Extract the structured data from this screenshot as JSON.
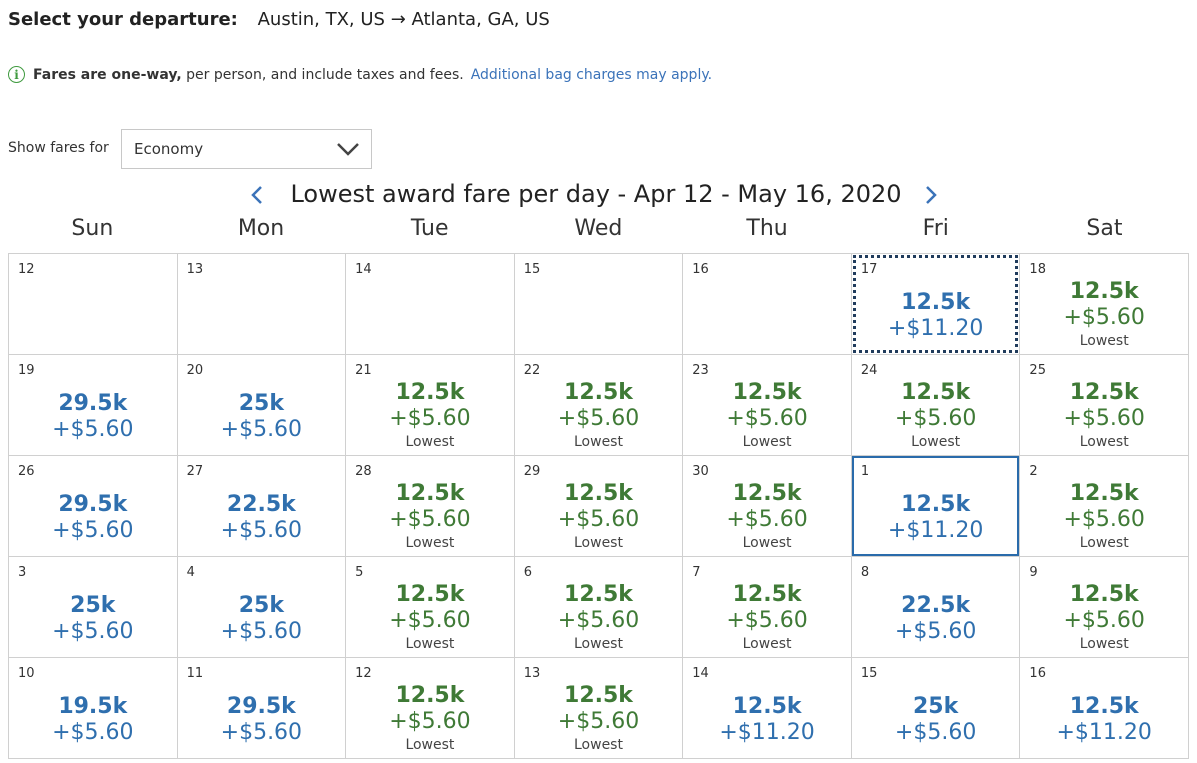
{
  "header": {
    "label": "Select your departure:",
    "route": "Austin, TX, US → Atlanta, GA, US"
  },
  "notice": {
    "bold": "Fares are one-way,",
    "text": " per person, and include taxes and fees.",
    "link": "Additional bag charges may apply."
  },
  "filter": {
    "label": "Show fares for",
    "selected": "Economy"
  },
  "calendar": {
    "title": "Lowest award fare per day - Apr 12 - May 16, 2020",
    "weekdays": [
      "Sun",
      "Mon",
      "Tue",
      "Wed",
      "Thu",
      "Fri",
      "Sat"
    ],
    "cells": [
      {
        "day": "12"
      },
      {
        "day": "13"
      },
      {
        "day": "14"
      },
      {
        "day": "15"
      },
      {
        "day": "16"
      },
      {
        "day": "17",
        "miles": "12.5k",
        "tax": "+$11.20",
        "color": "blue",
        "state": "today"
      },
      {
        "day": "18",
        "miles": "12.5k",
        "tax": "+$5.60",
        "lowest": "Lowest",
        "color": "green"
      },
      {
        "day": "19",
        "miles": "29.5k",
        "tax": "+$5.60",
        "color": "blue"
      },
      {
        "day": "20",
        "miles": "25k",
        "tax": "+$5.60",
        "color": "blue"
      },
      {
        "day": "21",
        "miles": "12.5k",
        "tax": "+$5.60",
        "lowest": "Lowest",
        "color": "green"
      },
      {
        "day": "22",
        "miles": "12.5k",
        "tax": "+$5.60",
        "lowest": "Lowest",
        "color": "green"
      },
      {
        "day": "23",
        "miles": "12.5k",
        "tax": "+$5.60",
        "lowest": "Lowest",
        "color": "green"
      },
      {
        "day": "24",
        "miles": "12.5k",
        "tax": "+$5.60",
        "lowest": "Lowest",
        "color": "green"
      },
      {
        "day": "25",
        "miles": "12.5k",
        "tax": "+$5.60",
        "lowest": "Lowest",
        "color": "green"
      },
      {
        "day": "26",
        "miles": "29.5k",
        "tax": "+$5.60",
        "color": "blue"
      },
      {
        "day": "27",
        "miles": "22.5k",
        "tax": "+$5.60",
        "color": "blue"
      },
      {
        "day": "28",
        "miles": "12.5k",
        "tax": "+$5.60",
        "lowest": "Lowest",
        "color": "green"
      },
      {
        "day": "29",
        "miles": "12.5k",
        "tax": "+$5.60",
        "lowest": "Lowest",
        "color": "green"
      },
      {
        "day": "30",
        "miles": "12.5k",
        "tax": "+$5.60",
        "lowest": "Lowest",
        "color": "green"
      },
      {
        "day": "1",
        "miles": "12.5k",
        "tax": "+$11.20",
        "color": "blue",
        "state": "selected"
      },
      {
        "day": "2",
        "miles": "12.5k",
        "tax": "+$5.60",
        "lowest": "Lowest",
        "color": "green"
      },
      {
        "day": "3",
        "miles": "25k",
        "tax": "+$5.60",
        "color": "blue"
      },
      {
        "day": "4",
        "miles": "25k",
        "tax": "+$5.60",
        "color": "blue"
      },
      {
        "day": "5",
        "miles": "12.5k",
        "tax": "+$5.60",
        "lowest": "Lowest",
        "color": "green"
      },
      {
        "day": "6",
        "miles": "12.5k",
        "tax": "+$5.60",
        "lowest": "Lowest",
        "color": "green"
      },
      {
        "day": "7",
        "miles": "12.5k",
        "tax": "+$5.60",
        "lowest": "Lowest",
        "color": "green"
      },
      {
        "day": "8",
        "miles": "22.5k",
        "tax": "+$5.60",
        "color": "blue"
      },
      {
        "day": "9",
        "miles": "12.5k",
        "tax": "+$5.60",
        "lowest": "Lowest",
        "color": "green"
      },
      {
        "day": "10",
        "miles": "19.5k",
        "tax": "+$5.60",
        "color": "blue"
      },
      {
        "day": "11",
        "miles": "29.5k",
        "tax": "+$5.60",
        "color": "blue"
      },
      {
        "day": "12",
        "miles": "12.5k",
        "tax": "+$5.60",
        "lowest": "Lowest",
        "color": "green"
      },
      {
        "day": "13",
        "miles": "12.5k",
        "tax": "+$5.60",
        "lowest": "Lowest",
        "color": "green"
      },
      {
        "day": "14",
        "miles": "12.5k",
        "tax": "+$11.20",
        "color": "blue"
      },
      {
        "day": "15",
        "miles": "25k",
        "tax": "+$5.60",
        "color": "blue"
      },
      {
        "day": "16",
        "miles": "12.5k",
        "tax": "+$11.20",
        "color": "blue"
      }
    ]
  },
  "colors": {
    "green": "#3f7a36",
    "blue": "#2f6fae",
    "link": "#3b73b9",
    "info": "#3f9a3f"
  },
  "icons": {
    "info": "info-circle-icon",
    "dropdown": "chevron-down-icon",
    "prev": "chevron-left-icon",
    "next": "chevron-right-icon"
  }
}
